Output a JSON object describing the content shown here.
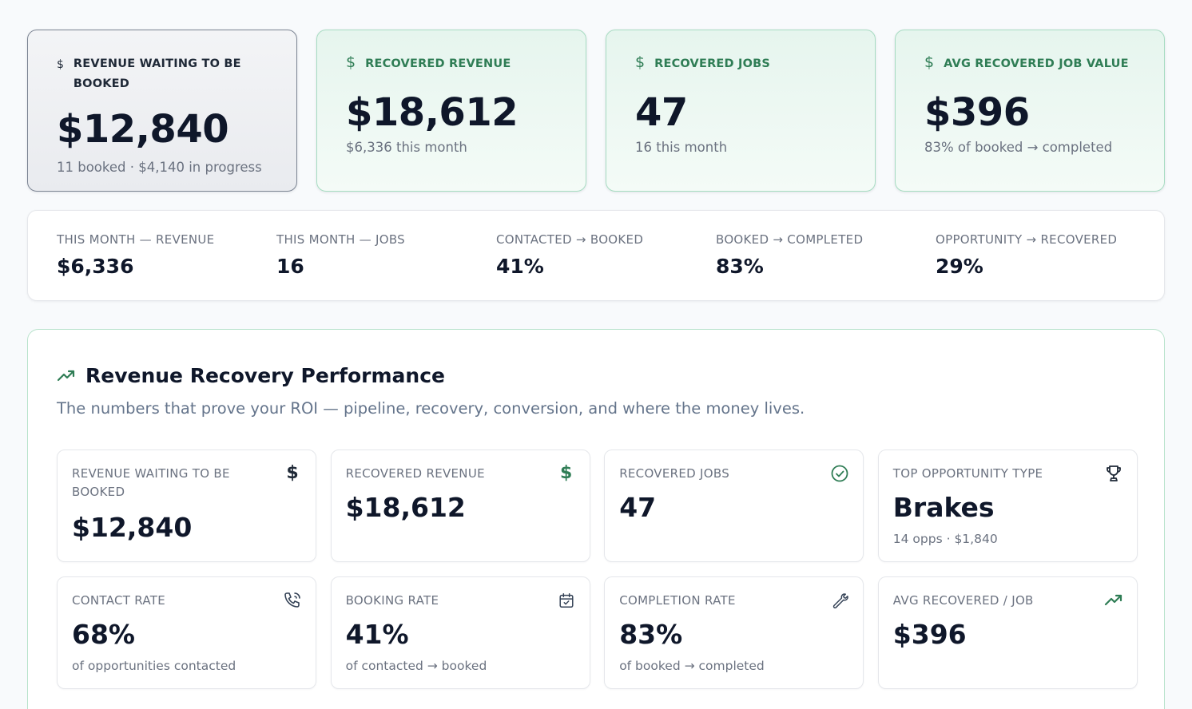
{
  "hero_cards": [
    {
      "label": "REVENUE WAITING TO BE BOOKED",
      "value": "$12,840",
      "sub": "11 booked · $4,140 in progress",
      "icon": "dollar-icon",
      "style": "gray"
    },
    {
      "label": "RECOVERED REVENUE",
      "value": "$18,612",
      "sub": "$6,336 this month",
      "icon": "dollar-icon",
      "style": "green"
    },
    {
      "label": "RECOVERED JOBS",
      "value": "47",
      "sub": "16 this month",
      "icon": "dollar-icon",
      "style": "green"
    },
    {
      "label": "AVG RECOVERED JOB VALUE",
      "value": "$396",
      "sub": "83% of booked → completed",
      "icon": "dollar-icon",
      "style": "green"
    }
  ],
  "stats_strip": [
    {
      "label": "THIS MONTH — REVENUE",
      "value": "$6,336"
    },
    {
      "label": "THIS MONTH — JOBS",
      "value": "16"
    },
    {
      "label": "CONTACTED → BOOKED",
      "value": "41%"
    },
    {
      "label": "BOOKED → COMPLETED",
      "value": "83%"
    },
    {
      "label": "OPPORTUNITY → RECOVERED",
      "value": "29%"
    }
  ],
  "performance": {
    "title": "Revenue Recovery Performance",
    "subtitle": "The numbers that prove your ROI — pipeline, recovery, conversion, and where the money lives.",
    "title_icon": "trending-up-icon",
    "cards": [
      {
        "label": "REVENUE WAITING TO BE BOOKED",
        "value": "$12,840",
        "sub": "",
        "icon": "dollar-icon"
      },
      {
        "label": "RECOVERED REVENUE",
        "value": "$18,612",
        "sub": "",
        "icon": "dollar-green-icon"
      },
      {
        "label": "RECOVERED JOBS",
        "value": "47",
        "sub": "",
        "icon": "check-circle-icon"
      },
      {
        "label": "TOP OPPORTUNITY TYPE",
        "value": "Brakes",
        "sub": "14 opps · $1,840",
        "icon": "trophy-icon"
      },
      {
        "label": "CONTACT RATE",
        "value": "68%",
        "sub": "of opportunities contacted",
        "icon": "phone-icon"
      },
      {
        "label": "BOOKING RATE",
        "value": "41%",
        "sub": "of contacted → booked",
        "icon": "calendar-check-icon"
      },
      {
        "label": "COMPLETION RATE",
        "value": "83%",
        "sub": "of booked → completed",
        "icon": "wrench-icon"
      },
      {
        "label": "AVG RECOVERED / JOB",
        "value": "$396",
        "sub": "",
        "icon": "trending-up-icon"
      }
    ]
  },
  "colors": {
    "accent_green": "#2f7d55",
    "border_green": "#a7dcc2",
    "text_dark": "#0f172a",
    "text_muted": "#6b7280"
  }
}
